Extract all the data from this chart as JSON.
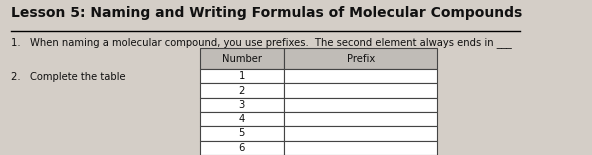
{
  "title": "Lesson 5: Naming and Writing Formulas of Molecular Compounds",
  "item1": "When naming a molecular compound, you use prefixes.  The second element always ends in ___",
  "item2": "Complete the table",
  "table_header_col1": "Number",
  "table_header_col2": "Prefix",
  "table_numbers": [
    "1",
    "2",
    "3",
    "4",
    "5",
    "6"
  ],
  "bg_color": "#d4cec7",
  "table_header_bg": "#c0bcb7",
  "table_cell_bg": "#ffffff",
  "text_color": "#111111",
  "title_fontsize": 10.0,
  "body_fontsize": 7.2
}
